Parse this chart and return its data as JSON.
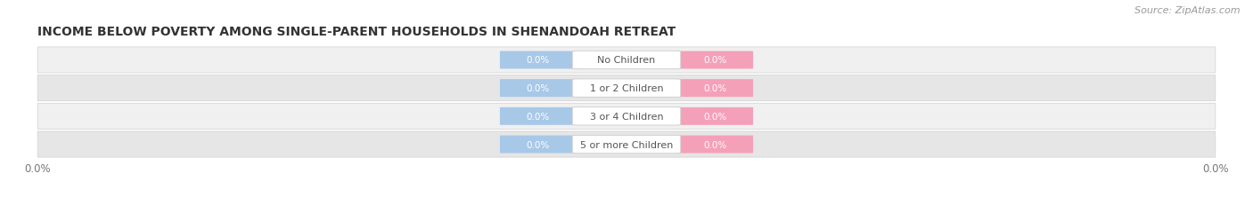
{
  "title": "INCOME BELOW POVERTY AMONG SINGLE-PARENT HOUSEHOLDS IN SHENANDOAH RETREAT",
  "source": "Source: ZipAtlas.com",
  "categories": [
    "No Children",
    "1 or 2 Children",
    "3 or 4 Children",
    "5 or more Children"
  ],
  "father_values": [
    0.0,
    0.0,
    0.0,
    0.0
  ],
  "mother_values": [
    0.0,
    0.0,
    0.0,
    0.0
  ],
  "father_color": "#A8C8E8",
  "mother_color": "#F4A0B8",
  "row_bg_colors_odd": "#F0F0F0",
  "row_bg_colors_even": "#E6E6E6",
  "row_border_color": "#D0D0D0",
  "title_fontsize": 10,
  "source_fontsize": 8,
  "label_fontsize": 8,
  "tick_fontsize": 8.5,
  "legend_fontsize": 8.5,
  "background_color": "#FFFFFF",
  "value_text_color": "#FFFFFF",
  "category_text_color": "#555555",
  "tick_color": "#777777"
}
